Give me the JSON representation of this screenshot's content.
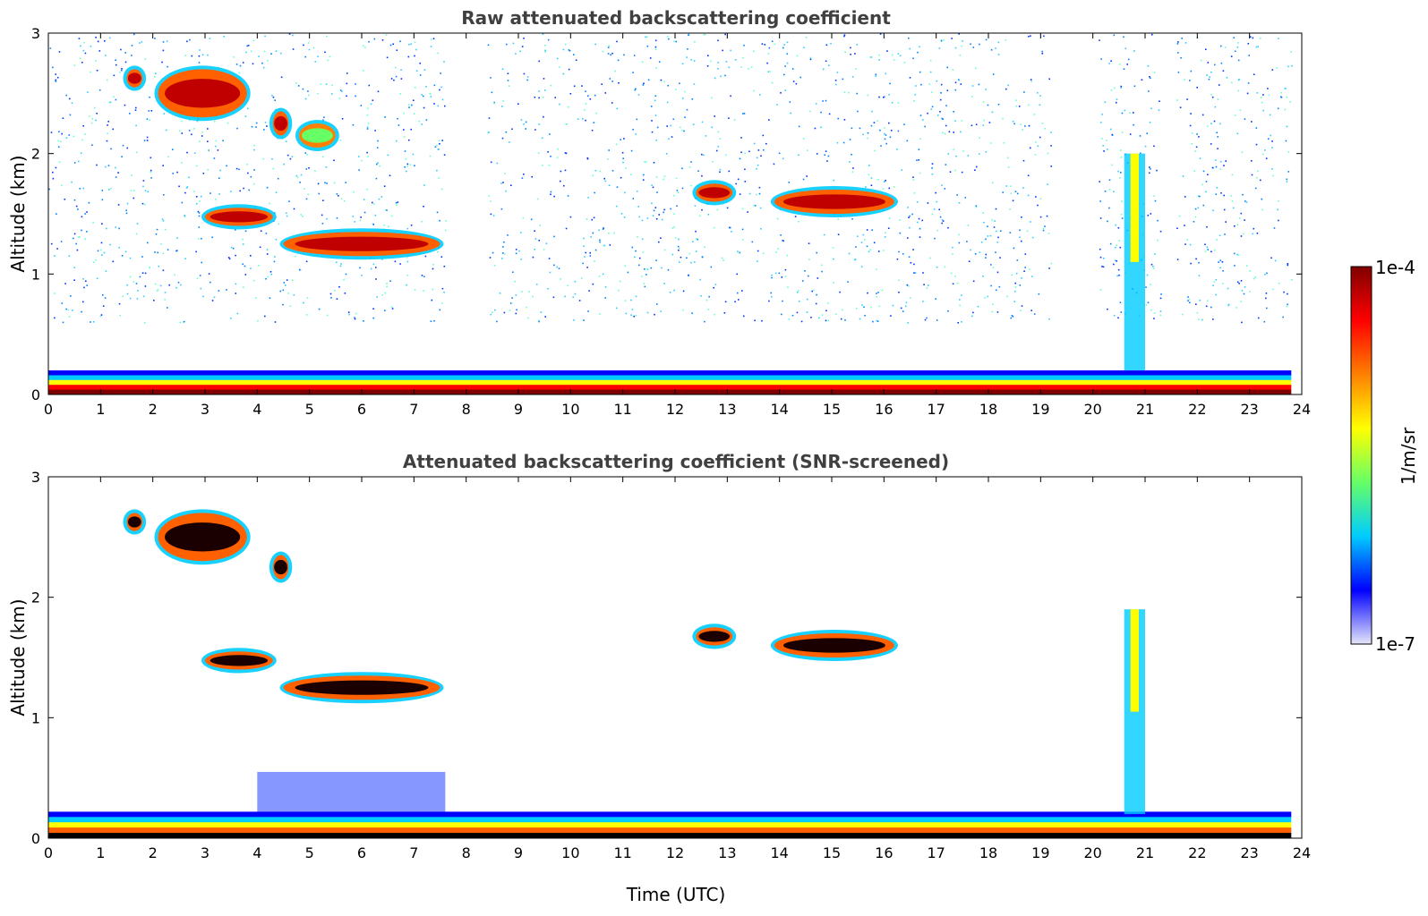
{
  "chart_data": [
    {
      "type": "heatmap",
      "title": "Raw attenuated backscattering coefficient",
      "xlabel": "",
      "ylabel": "Altitude (km)",
      "xlim": [
        0,
        24
      ],
      "ylim": [
        0,
        3
      ],
      "xticks": [
        0,
        1,
        2,
        3,
        4,
        5,
        6,
        7,
        8,
        9,
        10,
        11,
        12,
        13,
        14,
        15,
        16,
        17,
        18,
        19,
        20,
        21,
        22,
        23,
        24
      ],
      "yticks": [
        0,
        1,
        2,
        3
      ],
      "grid": false,
      "features": [
        {
          "label": "surface layer",
          "x": [
            0,
            23.8
          ],
          "y": [
            0,
            0.2
          ],
          "value": "high"
        },
        {
          "label": "cloud",
          "x": [
            1.5,
            1.8
          ],
          "y": [
            2.55,
            2.7
          ],
          "value": "high"
        },
        {
          "label": "cloud",
          "x": [
            2.1,
            3.8
          ],
          "y": [
            2.3,
            2.7
          ],
          "value": "high"
        },
        {
          "label": "cloud",
          "x": [
            4.3,
            4.6
          ],
          "y": [
            2.15,
            2.35
          ],
          "value": "high"
        },
        {
          "label": "cloud",
          "x": [
            4.8,
            5.5
          ],
          "y": [
            2.05,
            2.25
          ],
          "value": "medium"
        },
        {
          "label": "cloud",
          "x": [
            3.0,
            4.3
          ],
          "y": [
            1.4,
            1.55
          ],
          "value": "high"
        },
        {
          "label": "cloud",
          "x": [
            4.5,
            7.5
          ],
          "y": [
            1.15,
            1.35
          ],
          "value": "high"
        },
        {
          "label": "cloud",
          "x": [
            12.4,
            13.1
          ],
          "y": [
            1.6,
            1.75
          ],
          "value": "high"
        },
        {
          "label": "cloud",
          "x": [
            13.9,
            16.2
          ],
          "y": [
            1.5,
            1.7
          ],
          "value": "high"
        },
        {
          "label": "plume",
          "x": [
            20.6,
            21.0
          ],
          "y": [
            0.2,
            2.0
          ],
          "value": "medium"
        }
      ]
    },
    {
      "type": "heatmap",
      "title": "Attenuated backscattering coefficient (SNR-screened)",
      "xlabel": "Time (UTC)",
      "ylabel": "Altitude (km)",
      "xlim": [
        0,
        24
      ],
      "ylim": [
        0,
        3
      ],
      "xticks": [
        0,
        1,
        2,
        3,
        4,
        5,
        6,
        7,
        8,
        9,
        10,
        11,
        12,
        13,
        14,
        15,
        16,
        17,
        18,
        19,
        20,
        21,
        22,
        23,
        24
      ],
      "yticks": [
        0,
        1,
        2,
        3
      ],
      "grid": false,
      "features": [
        {
          "label": "surface layer",
          "x": [
            0,
            23.8
          ],
          "y": [
            0,
            0.22
          ],
          "value": "high"
        },
        {
          "label": "cloud",
          "x": [
            1.5,
            1.8
          ],
          "y": [
            2.55,
            2.7
          ],
          "value": "high"
        },
        {
          "label": "cloud",
          "x": [
            2.1,
            3.8
          ],
          "y": [
            2.3,
            2.7
          ],
          "value": "high"
        },
        {
          "label": "cloud",
          "x": [
            4.3,
            4.6
          ],
          "y": [
            2.15,
            2.35
          ],
          "value": "high"
        },
        {
          "label": "cloud",
          "x": [
            3.0,
            4.3
          ],
          "y": [
            1.4,
            1.55
          ],
          "value": "high"
        },
        {
          "label": "cloud",
          "x": [
            4.5,
            7.5
          ],
          "y": [
            1.15,
            1.35
          ],
          "value": "high"
        },
        {
          "label": "cloud",
          "x": [
            12.4,
            13.1
          ],
          "y": [
            1.6,
            1.75
          ],
          "value": "high"
        },
        {
          "label": "cloud",
          "x": [
            13.9,
            16.2
          ],
          "y": [
            1.5,
            1.7
          ],
          "value": "high"
        },
        {
          "label": "plume",
          "x": [
            20.6,
            21.0
          ],
          "y": [
            0.2,
            1.9
          ],
          "value": "medium"
        }
      ]
    }
  ],
  "colorbar": {
    "label": "1/m/sr",
    "max_label": "1e-4",
    "min_label": "1e-7",
    "range": [
      1e-07,
      0.0001
    ],
    "scale": "log",
    "colormap": "jet",
    "colors": [
      "#e6e6fa",
      "#0000ff",
      "#00ccff",
      "#66ff66",
      "#ffff00",
      "#ff8000",
      "#ff0000",
      "#800000"
    ]
  }
}
